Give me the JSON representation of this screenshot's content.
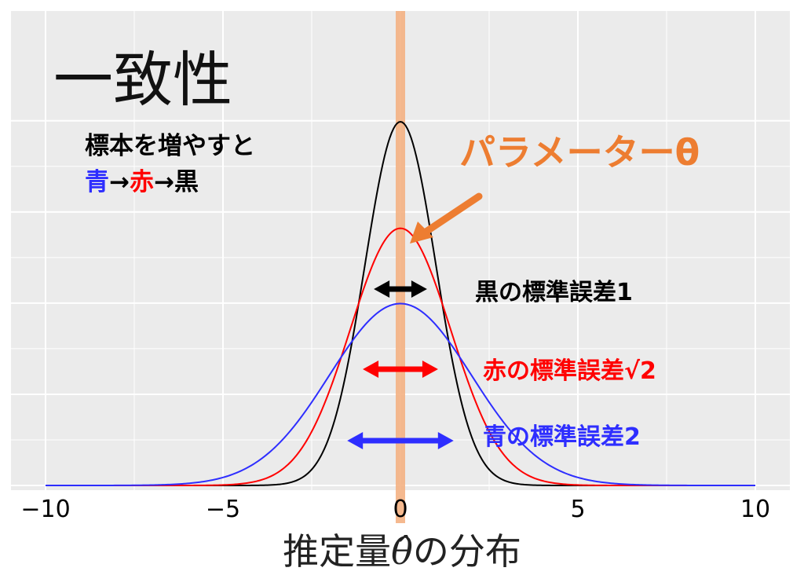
{
  "chart_data": {
    "type": "line",
    "title": "一致性",
    "xlabel_main": "推定量",
    "xlabel_symbol": "θ̂",
    "xlabel_suffix": "の分布",
    "ylabel": "",
    "xlim": [
      -10,
      10
    ],
    "ylim": [
      0,
      0.42
    ],
    "x_ticks": [
      -10,
      -5,
      0,
      5,
      10
    ],
    "x_tick_labels": [
      "−10",
      "−5",
      "0",
      "5",
      "10"
    ],
    "grid": true,
    "parameter_x": 0,
    "series": [
      {
        "key": "black",
        "color": "#000000",
        "mean": 0,
        "sd": 1
      },
      {
        "key": "red",
        "color": "#FF0000",
        "mean": 0,
        "sd": 1.4142
      },
      {
        "key": "blue",
        "color": "#2E2EFF",
        "mean": 0,
        "sd": 2
      }
    ],
    "annotations": {
      "note_line1": "標本を増やすと",
      "note_blue": "青",
      "note_arrow1": "→",
      "note_red": "赤",
      "note_arrow2": "→",
      "note_black": "黒",
      "parameter_label": "パラメーターθ",
      "black_se": "黒の標準誤差1",
      "red_se": "赤の標準誤差√2",
      "blue_se": "青の標準誤差2"
    },
    "colors": {
      "background": "#EBEBEB",
      "grid": "#FFFFFF",
      "parameter": "#ED7D31",
      "parameter_band": "#F4B183"
    }
  }
}
